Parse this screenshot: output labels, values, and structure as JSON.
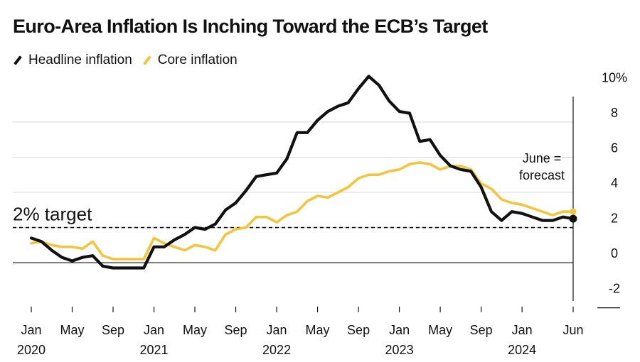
{
  "chart_data": {
    "type": "line",
    "title": "Euro-Area Inflation Is Inching Toward the ECB’s Target",
    "y_unit_suffix": "%",
    "ylim": [
      -2.5,
      10.5
    ],
    "y_ticks": [
      {
        "value": 10,
        "label": "10%"
      },
      {
        "value": 8,
        "label": "8"
      },
      {
        "value": 6,
        "label": "6"
      },
      {
        "value": 4,
        "label": "4"
      },
      {
        "value": 2,
        "label": "2"
      },
      {
        "value": 0,
        "label": "0"
      },
      {
        "value": -2,
        "label": "-2"
      }
    ],
    "x_ticks": [
      {
        "index": 0,
        "month": "Jan",
        "year": "2020"
      },
      {
        "index": 4,
        "month": "May",
        "year": ""
      },
      {
        "index": 8,
        "month": "Sep",
        "year": ""
      },
      {
        "index": 12,
        "month": "Jan",
        "year": "2021"
      },
      {
        "index": 16,
        "month": "May",
        "year": ""
      },
      {
        "index": 20,
        "month": "Sep",
        "year": ""
      },
      {
        "index": 24,
        "month": "Jan",
        "year": "2022"
      },
      {
        "index": 28,
        "month": "May",
        "year": ""
      },
      {
        "index": 32,
        "month": "Sep",
        "year": ""
      },
      {
        "index": 36,
        "month": "Jan",
        "year": "2023"
      },
      {
        "index": 40,
        "month": "May",
        "year": ""
      },
      {
        "index": 44,
        "month": "Sep",
        "year": ""
      },
      {
        "index": 48,
        "month": "Jan",
        "year": "2024"
      },
      {
        "index": 53,
        "month": "Jun",
        "year": ""
      }
    ],
    "x_index_range": [
      0,
      53
    ],
    "series": [
      {
        "name": "Headline inflation",
        "color": "#111111",
        "values": [
          1.4,
          1.2,
          0.7,
          0.3,
          0.1,
          0.3,
          0.4,
          -0.2,
          -0.3,
          -0.3,
          -0.3,
          -0.3,
          0.9,
          0.9,
          1.3,
          1.6,
          2.0,
          1.9,
          2.2,
          3.0,
          3.4,
          4.1,
          4.9,
          5.0,
          5.1,
          5.9,
          7.4,
          7.4,
          8.1,
          8.6,
          8.9,
          9.1,
          9.9,
          10.6,
          10.1,
          9.2,
          8.6,
          8.5,
          6.9,
          7.0,
          6.1,
          5.5,
          5.3,
          5.2,
          4.3,
          2.9,
          2.4,
          2.9,
          2.8,
          2.6,
          2.4,
          2.4,
          2.6,
          2.5
        ]
      },
      {
        "name": "Core inflation",
        "color": "#F2C53D",
        "values": [
          1.1,
          1.2,
          1.0,
          0.9,
          0.9,
          0.8,
          1.2,
          0.4,
          0.2,
          0.2,
          0.2,
          0.2,
          1.4,
          1.1,
          0.9,
          0.7,
          1.0,
          0.9,
          0.7,
          1.6,
          1.9,
          2.0,
          2.6,
          2.6,
          2.3,
          2.7,
          2.9,
          3.5,
          3.8,
          3.7,
          4.0,
          4.3,
          4.8,
          5.0,
          5.0,
          5.2,
          5.3,
          5.6,
          5.7,
          5.6,
          5.3,
          5.5,
          5.5,
          5.3,
          4.5,
          4.2,
          3.6,
          3.4,
          3.3,
          3.1,
          2.9,
          2.7,
          2.9,
          2.9
        ]
      }
    ],
    "reference_line": {
      "value": 2,
      "label": "2% target",
      "style": "dashed"
    },
    "annotation": {
      "lines": [
        "June =",
        "forecast"
      ],
      "index": 53
    },
    "legend_position": "top-left"
  }
}
